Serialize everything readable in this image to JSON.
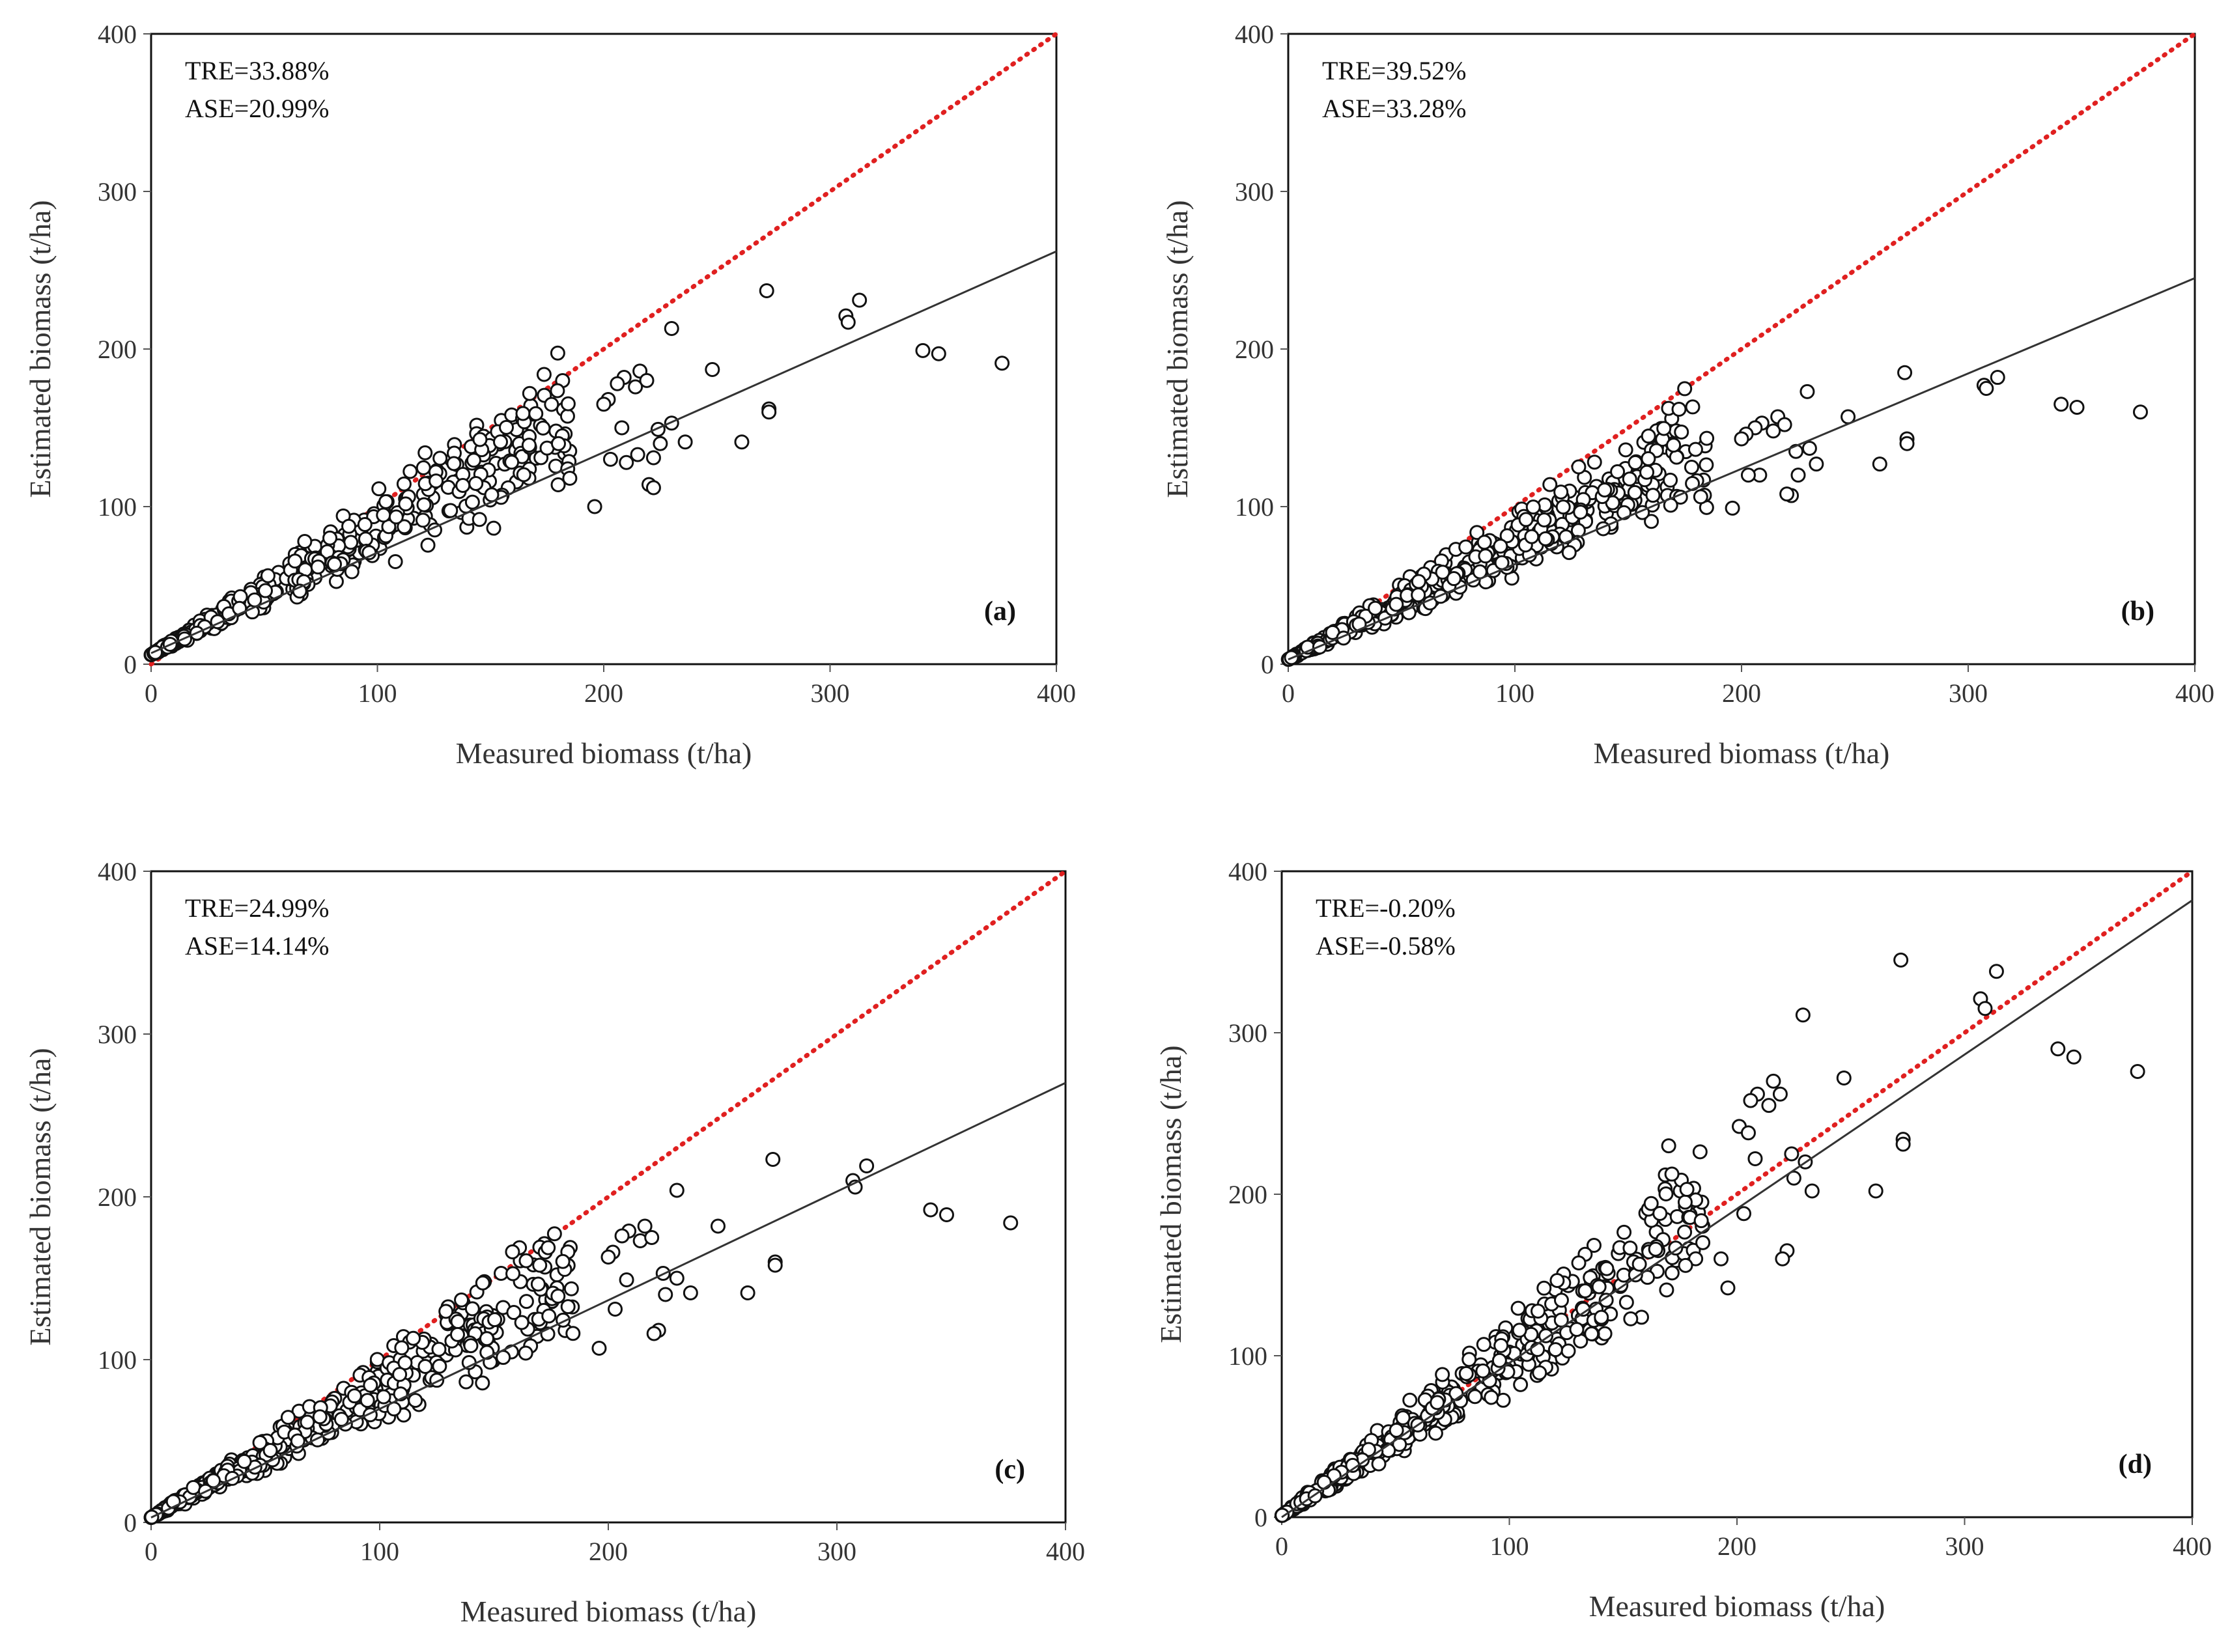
{
  "colors": {
    "one_to_one": "#e02020",
    "fit": "#333333",
    "marker_edge": "#111111",
    "marker_fill": "#ffffff"
  },
  "chart_data": [
    {
      "type": "scatter",
      "panel": "(a)",
      "xlabel": "Measured biomass  (t/ha)",
      "ylabel": "Estimated biomass  (t/ha)",
      "xlim": [
        0,
        400
      ],
      "ylim": [
        0,
        400
      ],
      "xticks": [
        0,
        100,
        200,
        300,
        400
      ],
      "yticks": [
        0,
        100,
        200,
        300,
        400
      ],
      "annotations": [
        "TRE=33.88%",
        "ASE=20.99%"
      ],
      "one_to_one": [
        [
          0,
          0
        ],
        [
          400,
          400
        ]
      ],
      "fit_line": [
        [
          0,
          7
        ],
        [
          400,
          262
        ]
      ],
      "outliers": [
        [
          272,
          237
        ],
        [
          313,
          231
        ],
        [
          307,
          221
        ],
        [
          308,
          217
        ],
        [
          230,
          213
        ],
        [
          341,
          199
        ],
        [
          348,
          197
        ],
        [
          376,
          191
        ],
        [
          248,
          187
        ],
        [
          216,
          186
        ],
        [
          209,
          182
        ],
        [
          206,
          178
        ],
        [
          214,
          176
        ],
        [
          202,
          168
        ],
        [
          200,
          165
        ],
        [
          219,
          180
        ],
        [
          208,
          150
        ],
        [
          224,
          149
        ],
        [
          230,
          153
        ],
        [
          225,
          140
        ],
        [
          236,
          141
        ],
        [
          261,
          141
        ],
        [
          273,
          162
        ],
        [
          273,
          160
        ],
        [
          222,
          131
        ],
        [
          210,
          128
        ],
        [
          203,
          130
        ],
        [
          215,
          133
        ],
        [
          220,
          114
        ],
        [
          222,
          112
        ],
        [
          196,
          100
        ],
        [
          170,
          159
        ],
        [
          167,
          139
        ],
        [
          180,
          140
        ],
        [
          185,
          118
        ]
      ],
      "cloud": {
        "n": 460,
        "seed": 11,
        "xmax": 185,
        "ratio_lo": 0.52,
        "ratio_hi": 1.08,
        "offset": 6
      }
    },
    {
      "type": "scatter",
      "panel": "(b)",
      "xlabel": "Measured biomass  (t/ha)",
      "ylabel": "Estimated biomass  (t/ha)",
      "xlim": [
        0,
        400
      ],
      "ylim": [
        0,
        400
      ],
      "xticks": [
        0,
        100,
        200,
        300,
        400
      ],
      "yticks": [
        0,
        100,
        200,
        300,
        400
      ],
      "annotations": [
        "TRE=39.52%",
        "ASE=33.28%"
      ],
      "one_to_one": [
        [
          0,
          0
        ],
        [
          400,
          400
        ]
      ],
      "fit_line": [
        [
          0,
          3
        ],
        [
          400,
          245
        ]
      ],
      "outliers": [
        [
          272,
          185
        ],
        [
          313,
          182
        ],
        [
          307,
          177
        ],
        [
          308,
          175
        ],
        [
          229,
          173
        ],
        [
          341,
          165
        ],
        [
          348,
          163
        ],
        [
          376,
          160
        ],
        [
          247,
          157
        ],
        [
          216,
          157
        ],
        [
          209,
          153
        ],
        [
          206,
          150
        ],
        [
          214,
          148
        ],
        [
          202,
          146
        ],
        [
          200,
          143
        ],
        [
          219,
          152
        ],
        [
          208,
          120
        ],
        [
          224,
          135
        ],
        [
          230,
          137
        ],
        [
          225,
          120
        ],
        [
          233,
          127
        ],
        [
          261,
          127
        ],
        [
          273,
          143
        ],
        [
          273,
          140
        ],
        [
          222,
          107
        ],
        [
          220,
          108
        ],
        [
          203,
          120
        ],
        [
          196,
          99
        ],
        [
          170,
          139
        ],
        [
          178,
          125
        ]
      ],
      "cloud": {
        "n": 460,
        "seed": 23,
        "xmax": 185,
        "ratio_lo": 0.5,
        "ratio_hi": 1.0,
        "offset": 3
      }
    },
    {
      "type": "scatter",
      "panel": "(c)",
      "xlabel": "Measured biomass  (t/ha)",
      "ylabel": "Estimated biomass  (t/ha)",
      "xlim": [
        0,
        400
      ],
      "ylim": [
        0,
        400
      ],
      "xticks": [
        0,
        100,
        200,
        300,
        400
      ],
      "yticks": [
        0,
        100,
        200,
        300,
        400
      ],
      "annotations": [
        "TRE=24.99%",
        "ASE=14.14%"
      ],
      "one_to_one": [
        [
          0,
          0
        ],
        [
          400,
          400
        ]
      ],
      "fit_line": [
        [
          0,
          3
        ],
        [
          400,
          270
        ]
      ],
      "outliers": [
        [
          272,
          223
        ],
        [
          313,
          219
        ],
        [
          307,
          210
        ],
        [
          308,
          206
        ],
        [
          230,
          204
        ],
        [
          341,
          192
        ],
        [
          348,
          189
        ],
        [
          376,
          184
        ],
        [
          248,
          182
        ],
        [
          216,
          182
        ],
        [
          209,
          179
        ],
        [
          206,
          176
        ],
        [
          214,
          173
        ],
        [
          202,
          166
        ],
        [
          200,
          163
        ],
        [
          219,
          175
        ],
        [
          208,
          149
        ],
        [
          224,
          153
        ],
        [
          230,
          150
        ],
        [
          225,
          140
        ],
        [
          236,
          141
        ],
        [
          261,
          141
        ],
        [
          273,
          160
        ],
        [
          273,
          158
        ],
        [
          222,
          118
        ],
        [
          220,
          116
        ],
        [
          203,
          131
        ],
        [
          196,
          107
        ],
        [
          170,
          158
        ],
        [
          178,
          139
        ]
      ],
      "cloud": {
        "n": 460,
        "seed": 37,
        "xmax": 185,
        "ratio_lo": 0.55,
        "ratio_hi": 1.06,
        "offset": 3
      }
    },
    {
      "type": "scatter",
      "panel": "(d)",
      "xlabel": "Measured biomass (t/ha)",
      "ylabel": "Estimated biomass  (t/ha)",
      "xlim": [
        0,
        400
      ],
      "ylim": [
        0,
        400
      ],
      "xticks": [
        0,
        100,
        200,
        300,
        400
      ],
      "yticks": [
        0,
        100,
        200,
        300,
        400
      ],
      "annotations": [
        "TRE=-0.20%",
        "ASE=-0.58%"
      ],
      "one_to_one": [
        [
          0,
          0
        ],
        [
          400,
          400
        ]
      ],
      "fit_line": [
        [
          0,
          0
        ],
        [
          400,
          382
        ]
      ],
      "outliers": [
        [
          272,
          345
        ],
        [
          314,
          338
        ],
        [
          307,
          321
        ],
        [
          309,
          315
        ],
        [
          229,
          311
        ],
        [
          341,
          290
        ],
        [
          348,
          285
        ],
        [
          376,
          276
        ],
        [
          247,
          272
        ],
        [
          216,
          270
        ],
        [
          209,
          262
        ],
        [
          206,
          258
        ],
        [
          214,
          255
        ],
        [
          201,
          242
        ],
        [
          205,
          238
        ],
        [
          219,
          262
        ],
        [
          208,
          222
        ],
        [
          224,
          225
        ],
        [
          230,
          220
        ],
        [
          225,
          210
        ],
        [
          233,
          202
        ],
        [
          261,
          202
        ],
        [
          273,
          234
        ],
        [
          273,
          231
        ],
        [
          222,
          165
        ],
        [
          220,
          160
        ],
        [
          203,
          188
        ],
        [
          196,
          142
        ],
        [
          170,
          230
        ],
        [
          178,
          203
        ],
        [
          185,
          170
        ],
        [
          193,
          160
        ]
      ],
      "cloud": {
        "n": 460,
        "seed": 53,
        "xmax": 185,
        "ratio_lo": 0.7,
        "ratio_hi": 1.3,
        "offset": 1
      }
    }
  ]
}
